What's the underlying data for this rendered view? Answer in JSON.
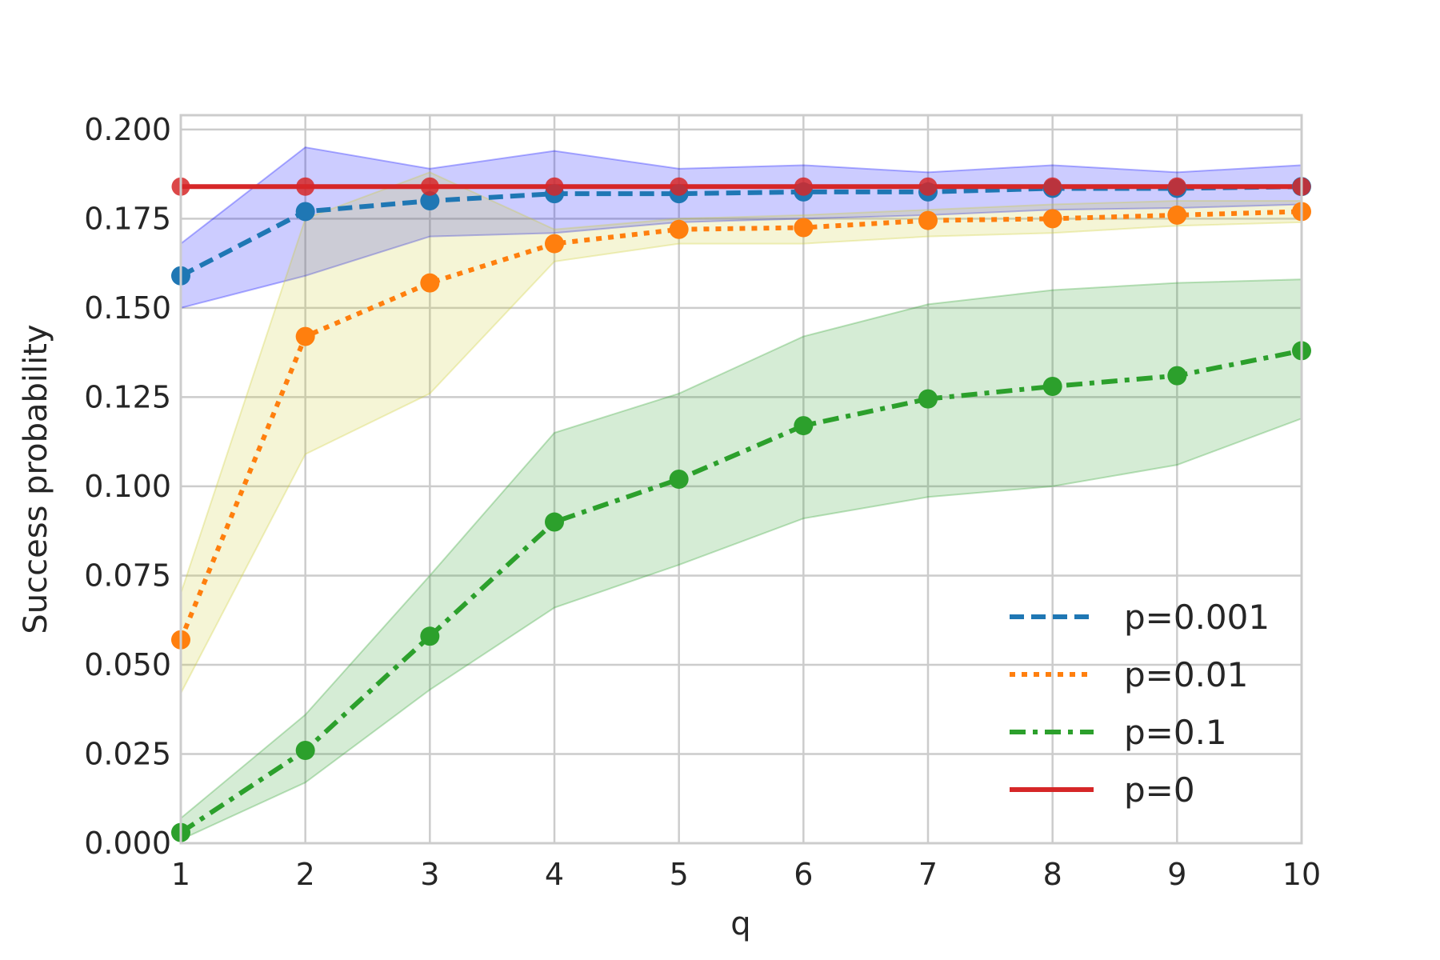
{
  "chart_data": {
    "type": "line",
    "title": "",
    "xlabel": "q",
    "ylabel": "Success probability",
    "x": [
      1,
      2,
      3,
      4,
      5,
      6,
      7,
      8,
      9,
      10
    ],
    "xlim": [
      1,
      10
    ],
    "ylim": [
      0,
      0.204
    ],
    "xticks": [
      "1",
      "2",
      "3",
      "4",
      "5",
      "6",
      "7",
      "8",
      "9",
      "10"
    ],
    "yticks": [
      "0.000",
      "0.025",
      "0.050",
      "0.075",
      "0.100",
      "0.125",
      "0.150",
      "0.175",
      "0.200"
    ],
    "grid": true,
    "legend_position": "lower-right",
    "series": [
      {
        "name": "p=0.001",
        "color": "#1f77b4",
        "dash": "dashed",
        "band_color": "#0000ff",
        "values": [
          0.159,
          0.177,
          0.18,
          0.182,
          0.182,
          0.1825,
          0.1825,
          0.1835,
          0.1835,
          0.184
        ],
        "lower": [
          0.15,
          0.159,
          0.17,
          0.171,
          0.174,
          0.175,
          0.176,
          0.1775,
          0.178,
          0.179
        ],
        "upper": [
          0.168,
          0.195,
          0.189,
          0.194,
          0.189,
          0.19,
          0.188,
          0.19,
          0.188,
          0.19
        ]
      },
      {
        "name": "p=0.01",
        "color": "#ff7f0e",
        "dash": "dotted",
        "band_color": "#cccc33",
        "values": [
          0.057,
          0.142,
          0.157,
          0.168,
          0.172,
          0.1725,
          0.1745,
          0.175,
          0.176,
          0.177
        ],
        "lower": [
          0.042,
          0.109,
          0.126,
          0.163,
          0.168,
          0.168,
          0.17,
          0.171,
          0.173,
          0.174
        ],
        "upper": [
          0.07,
          0.175,
          0.188,
          0.172,
          0.175,
          0.176,
          0.1775,
          0.179,
          0.18,
          0.18
        ]
      },
      {
        "name": "p=0.1",
        "color": "#2ca02c",
        "dash": "dashdot",
        "band_color": "#2ca02c",
        "values": [
          0.003,
          0.026,
          0.058,
          0.09,
          0.102,
          0.117,
          0.1245,
          0.128,
          0.131,
          0.138
        ],
        "lower": [
          0.001,
          0.017,
          0.043,
          0.066,
          0.078,
          0.091,
          0.097,
          0.1,
          0.106,
          0.119
        ],
        "upper": [
          0.007,
          0.036,
          0.075,
          0.115,
          0.126,
          0.142,
          0.151,
          0.155,
          0.157,
          0.158
        ]
      },
      {
        "name": "p=0",
        "color": "#d62728",
        "dash": "solid",
        "values": [
          0.184,
          0.184,
          0.184,
          0.184,
          0.184,
          0.184,
          0.184,
          0.184,
          0.184,
          0.184
        ]
      }
    ]
  }
}
